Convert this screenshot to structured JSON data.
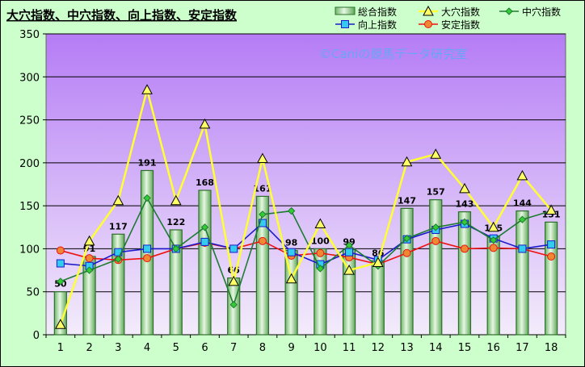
{
  "chart_data": {
    "type": "bar",
    "title": "大穴指数、中穴指数、向上指数、安定指数",
    "watermark": "©Caniの競馬データ研究室",
    "categories": [
      "1",
      "2",
      "3",
      "4",
      "5",
      "6",
      "7",
      "8",
      "9",
      "10",
      "11",
      "12",
      "13",
      "14",
      "15",
      "16",
      "17",
      "18"
    ],
    "ylim": [
      0,
      350
    ],
    "yticks": [
      0,
      50,
      100,
      150,
      200,
      250,
      300,
      350
    ],
    "grid": true,
    "legend_position": "top-right",
    "bar_series": {
      "name": "総合指数",
      "color": "#a9dfa3",
      "values": [
        50,
        91,
        117,
        191,
        122,
        168,
        66,
        161,
        98,
        100,
        99,
        86,
        147,
        157,
        143,
        115,
        144,
        131
      ],
      "labels": [
        "50",
        "91",
        "117",
        "191",
        "122",
        "168",
        "66",
        "161",
        "98",
        "100",
        "99",
        "86",
        "147",
        "157",
        "143",
        "115",
        "144",
        "131"
      ]
    },
    "series": [
      {
        "name": "大穴指数",
        "color": "#ffff33",
        "marker": "triangle",
        "marker_fill": "#ffff66",
        "values": [
          12,
          109,
          156,
          285,
          156,
          245,
          62,
          205,
          65,
          129,
          75,
          84,
          201,
          210,
          170,
          125,
          185,
          145
        ]
      },
      {
        "name": "中穴指数",
        "color": "#1e7b32",
        "marker": "diamond",
        "marker_fill": "#33cc33",
        "values": [
          62,
          75,
          88,
          159,
          100,
          125,
          35,
          140,
          144,
          77,
          104,
          80,
          112,
          125,
          131,
          110,
          134,
          144
        ]
      },
      {
        "name": "向上指数",
        "color": "#1a1acc",
        "marker": "square",
        "marker_fill": "#33ccee",
        "values": [
          83,
          80,
          96,
          100,
          100,
          108,
          100,
          130,
          96,
          82,
          96,
          87,
          111,
          122,
          129,
          112,
          100,
          105
        ]
      },
      {
        "name": "安定指数",
        "color": "#ee1111",
        "marker": "circle",
        "marker_fill": "#ee8833",
        "values": [
          98,
          89,
          87,
          89,
          100,
          107,
          100,
          109,
          92,
          95,
          90,
          82,
          95,
          109,
          100,
          101,
          100,
          91
        ]
      }
    ],
    "colors": {
      "frame_bg": "#ccffcc",
      "plot_top": "#b57cf5",
      "plot_bottom": "#f3ecfb",
      "watermark": "#66a6f6",
      "grid": "#000000"
    }
  }
}
